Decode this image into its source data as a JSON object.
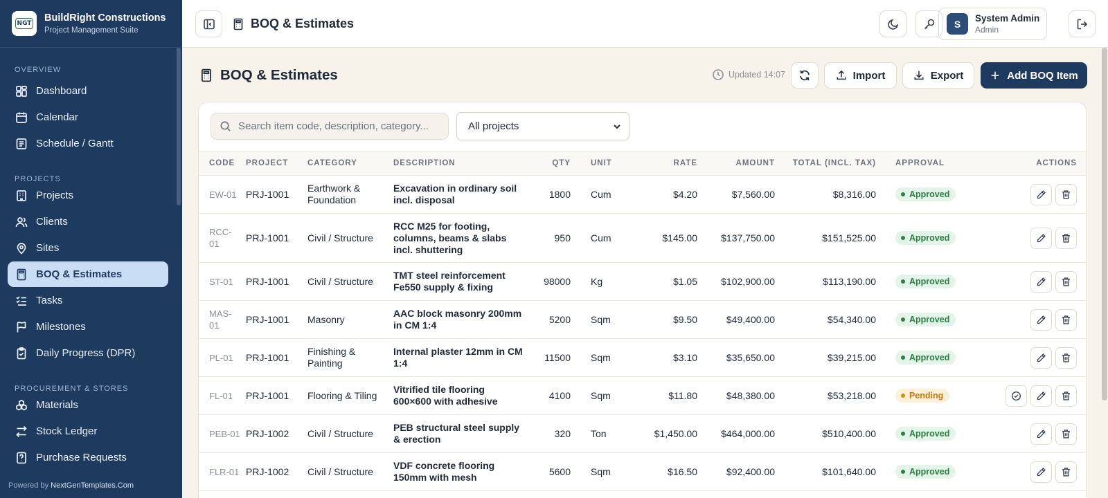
{
  "brand": {
    "name": "BuildRight Constructions",
    "subtitle": "Project Management Suite",
    "logo_text": "NGT"
  },
  "sidebar": {
    "sections": [
      {
        "title": "OVERVIEW",
        "items": [
          {
            "label": "Dashboard",
            "icon": "dashboard-icon"
          },
          {
            "label": "Calendar",
            "icon": "calendar-icon"
          },
          {
            "label": "Schedule / Gantt",
            "icon": "schedule-icon"
          }
        ]
      },
      {
        "title": "PROJECTS",
        "items": [
          {
            "label": "Projects",
            "icon": "building-icon"
          },
          {
            "label": "Clients",
            "icon": "users-icon"
          },
          {
            "label": "Sites",
            "icon": "map-pin-icon"
          },
          {
            "label": "BOQ & Estimates",
            "icon": "calculator-icon",
            "active": true
          },
          {
            "label": "Tasks",
            "icon": "tasks-icon"
          },
          {
            "label": "Milestones",
            "icon": "flag-icon"
          },
          {
            "label": "Daily Progress (DPR)",
            "icon": "clipboard-icon"
          }
        ]
      },
      {
        "title": "PROCUREMENT & STORES",
        "items": [
          {
            "label": "Materials",
            "icon": "boxes-icon"
          },
          {
            "label": "Stock Ledger",
            "icon": "transfer-icon"
          },
          {
            "label": "Purchase Requests",
            "icon": "request-icon"
          }
        ]
      }
    ],
    "powered_prefix": "Powered by",
    "powered_link": "NextGenTemplates.Com"
  },
  "topbar": {
    "title": "BOQ & Estimates",
    "user_name": "System Admin",
    "user_role": "Admin",
    "avatar_letter": "S"
  },
  "page": {
    "title": "BOQ & Estimates",
    "updated": "Updated 14:07",
    "import_label": "Import",
    "export_label": "Export",
    "add_label": "Add BOQ Item",
    "search_placeholder": "Search item code, description, category...",
    "project_filter": "All projects"
  },
  "table": {
    "headers": [
      "CODE",
      "PROJECT",
      "CATEGORY",
      "DESCRIPTION",
      "QTY",
      "UNIT",
      "RATE",
      "AMOUNT",
      "TOTAL (INCL. TAX)",
      "APPROVAL",
      "ACTIONS"
    ],
    "rows": [
      {
        "code": "EW-01",
        "project": "PRJ-1001",
        "category": "Earthwork & Foundation",
        "description": "Excavation in ordinary soil incl. disposal",
        "qty": "1800",
        "unit": "Cum",
        "rate": "$4.20",
        "amount": "$7,560.00",
        "total": "$8,316.00",
        "approval": "Approved"
      },
      {
        "code": "RCC-01",
        "project": "PRJ-1001",
        "category": "Civil / Structure",
        "description": "RCC M25 for footing, columns, beams & slabs incl. shuttering",
        "qty": "950",
        "unit": "Cum",
        "rate": "$145.00",
        "amount": "$137,750.00",
        "total": "$151,525.00",
        "approval": "Approved"
      },
      {
        "code": "ST-01",
        "project": "PRJ-1001",
        "category": "Civil / Structure",
        "description": "TMT steel reinforcement Fe550 supply & fixing",
        "qty": "98000",
        "unit": "Kg",
        "rate": "$1.05",
        "amount": "$102,900.00",
        "total": "$113,190.00",
        "approval": "Approved"
      },
      {
        "code": "MAS-01",
        "project": "PRJ-1001",
        "category": "Masonry",
        "description": "AAC block masonry 200mm in CM 1:4",
        "qty": "5200",
        "unit": "Sqm",
        "rate": "$9.50",
        "amount": "$49,400.00",
        "total": "$54,340.00",
        "approval": "Approved"
      },
      {
        "code": "PL-01",
        "project": "PRJ-1001",
        "category": "Finishing & Painting",
        "description": "Internal plaster 12mm in CM 1:4",
        "qty": "11500",
        "unit": "Sqm",
        "rate": "$3.10",
        "amount": "$35,650.00",
        "total": "$39,215.00",
        "approval": "Approved"
      },
      {
        "code": "FL-01",
        "project": "PRJ-1001",
        "category": "Flooring & Tiling",
        "description": "Vitrified tile flooring 600×600 with adhesive",
        "qty": "4100",
        "unit": "Sqm",
        "rate": "$11.80",
        "amount": "$48,380.00",
        "total": "$53,218.00",
        "approval": "Pending"
      },
      {
        "code": "PEB-01",
        "project": "PRJ-1002",
        "category": "Civil / Structure",
        "description": "PEB structural steel supply & erection",
        "qty": "320",
        "unit": "Ton",
        "rate": "$1,450.00",
        "amount": "$464,000.00",
        "total": "$510,400.00",
        "approval": "Approved"
      },
      {
        "code": "FLR-01",
        "project": "PRJ-1002",
        "category": "Civil / Structure",
        "description": "VDF concrete flooring 150mm with mesh",
        "qty": "5600",
        "unit": "Sqm",
        "rate": "$16.50",
        "amount": "$92,400.00",
        "total": "$101,640.00",
        "approval": "Approved"
      }
    ]
  },
  "colors": {
    "sidebar_bg": "#1e3a5f",
    "accent": "#1e3a5f",
    "approved": "#2e7d45",
    "pending": "#d98a12",
    "page_bg": "#f7f2ea"
  }
}
